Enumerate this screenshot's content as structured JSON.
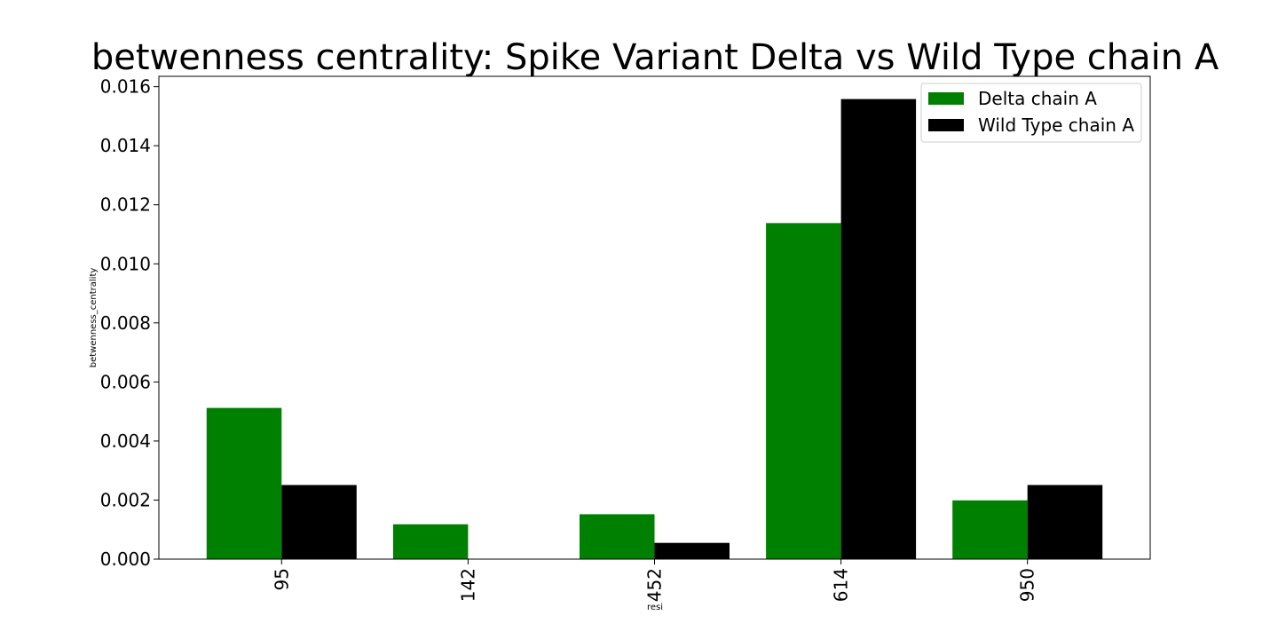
{
  "chart_data": {
    "type": "bar",
    "title": "betwenness centrality: Spike Variant Delta vs Wild Type chain A",
    "xlabel": "resi",
    "ylabel": "betwenness_centrality",
    "categories": [
      "95",
      "142",
      "452",
      "614",
      "950"
    ],
    "series": [
      {
        "name": "Delta chain A",
        "color": "#008000",
        "values": [
          0.00512,
          0.00118,
          0.00152,
          0.01138,
          0.00199
        ]
      },
      {
        "name": "Wild Type chain A",
        "color": "#000000",
        "values": [
          0.00251,
          0.0,
          0.00055,
          0.01558,
          0.00251
        ]
      }
    ],
    "ylim": [
      0,
      0.01635
    ],
    "yticks": [
      {
        "value": 0.0,
        "label": "0.000"
      },
      {
        "value": 0.002,
        "label": "0.002"
      },
      {
        "value": 0.004,
        "label": "0.004"
      },
      {
        "value": 0.006,
        "label": "0.006"
      },
      {
        "value": 0.008,
        "label": "0.008"
      },
      {
        "value": 0.01,
        "label": "0.010"
      },
      {
        "value": 0.012,
        "label": "0.012"
      },
      {
        "value": 0.014,
        "label": "0.014"
      },
      {
        "value": 0.016,
        "label": "0.016"
      }
    ],
    "grid": false,
    "legend_position": "top-right"
  }
}
